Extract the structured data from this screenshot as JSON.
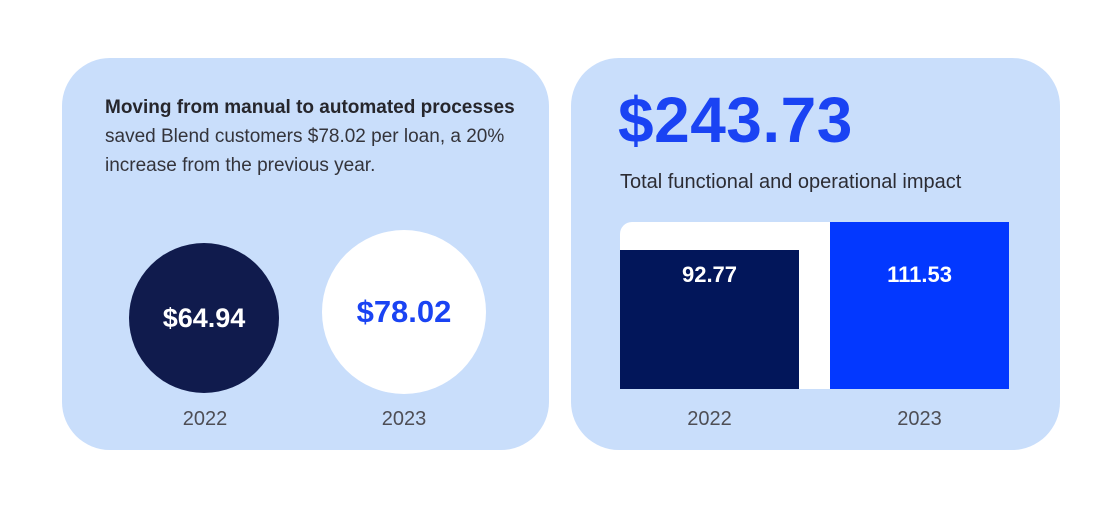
{
  "left_card": {
    "intro": {
      "bold": "Moving from manual to automated processes",
      "rest": " saved Blend customers $78.02 per loan, a 20% increase from the previous year."
    },
    "circles": [
      {
        "year": "2022",
        "value": "$64.94"
      },
      {
        "year": "2023",
        "value": "$78.02"
      }
    ]
  },
  "right_card": {
    "headline": "$243.73",
    "subtitle": "Total functional and operational impact",
    "bars": [
      {
        "year": "2022",
        "value": "92.77"
      },
      {
        "year": "2023",
        "value": "111.53"
      }
    ]
  },
  "colors": {
    "page_background": "#ffffff",
    "card_background": "#c9defb",
    "circle_navy": "#101b4d",
    "bar_navy": "#02165a",
    "bar_blue": "#0338ff",
    "accent_text_blue": "#1a43f3",
    "body_text": "#34343b",
    "year_label_gray": "#4e4e55",
    "value_text_white": "#ffffff"
  },
  "chart_data": [
    {
      "type": "bar",
      "variant": "proportional-circles",
      "title": "Moving from manual to automated processes saved Blend customers $78.02 per loan, a 20% increase from the previous year.",
      "categories": [
        "2022",
        "2023"
      ],
      "values": [
        64.94,
        78.02
      ],
      "value_labels": [
        "$64.94",
        "$78.02"
      ],
      "legend": "none",
      "grid": false
    },
    {
      "type": "bar",
      "title": "$243.73",
      "subtitle": "Total functional and operational impact",
      "categories": [
        "2022",
        "2023"
      ],
      "values": [
        92.77,
        111.53
      ],
      "value_labels": [
        "92.77",
        "111.53"
      ],
      "ylim": [
        0,
        111.53
      ],
      "legend": "none",
      "grid": false
    }
  ]
}
